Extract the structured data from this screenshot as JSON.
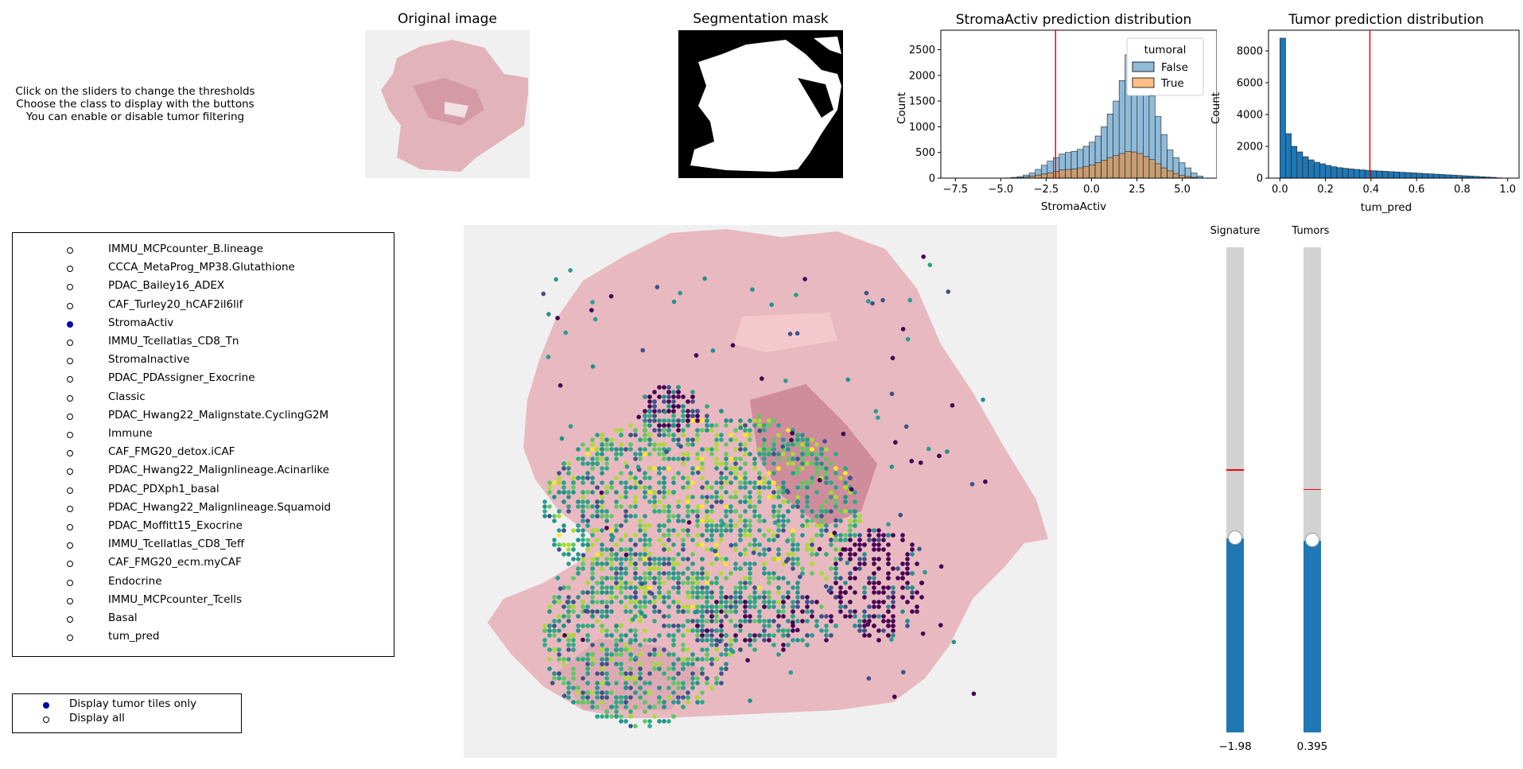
{
  "instructions": [
    "Click on the sliders to change the thresholds",
    "Choose the class to display with the buttons",
    "You can enable or disable tumor filtering"
  ],
  "original_title": "Original image",
  "mask_title": "Segmentation mask",
  "signatures": {
    "selected": "StromaActiv",
    "items": [
      "IMMU_MCPcounter_B.lineage",
      "CCCA_MetaProg_MP38.Glutathione",
      "PDAC_Bailey16_ADEX",
      "CAF_Turley20_hCAF2il6lif",
      "StromaActiv",
      "IMMU_Tcellatlas_CD8_Tn",
      "StromaInactive",
      "PDAC_PDAssigner_Exocrine",
      "Classic",
      "PDAC_Hwang22_Malignstate.CyclingG2M",
      "Immune",
      "CAF_FMG20_detox.iCAF",
      "PDAC_Hwang22_Malignlineage.Acinarlike",
      "PDAC_PDXph1_basal",
      "PDAC_Hwang22_Malignlineage.Squamoid",
      "PDAC_Moffitt15_Exocrine",
      "IMMU_Tcellatlas_CD8_Teff",
      "CAF_FMG20_ecm.myCAF",
      "Endocrine",
      "IMMU_MCPcounter_Tcells",
      "Basal",
      "tum_pred"
    ]
  },
  "filter": {
    "selected": "Display tumor tiles only",
    "options": [
      "Display tumor tiles only",
      "Display all"
    ]
  },
  "sliders": {
    "signature": {
      "label": "Signature",
      "value_text": "−1.98",
      "fill_fraction": 0.4,
      "init_fraction": 0.54
    },
    "tumors": {
      "label": "Tumors",
      "value_text": "0.395",
      "fill_fraction": 0.395,
      "init_fraction": 0.5
    }
  },
  "colors": {
    "hist_blue": "#1f77b4",
    "hist_orange": "#ff7f0e",
    "threshold": "#ff0000",
    "tissue": "#e8b9c0",
    "slide_bg": "#f0f0f0"
  },
  "chart_data": [
    {
      "type": "bar",
      "title": "StromaActiv prediction distribution",
      "xlabel": "StromaActiv",
      "ylabel": "Count",
      "xlim": [
        -8.3,
        6.9
      ],
      "ylim": [
        0,
        2880
      ],
      "xticks": [
        "−7.5",
        "−5.0",
        "−2.5",
        "0.0",
        "2.5",
        "5.0"
      ],
      "yticks": [
        "0",
        "500",
        "1000",
        "1500",
        "2000",
        "2500"
      ],
      "legend_title": "tumoral",
      "legend_position": "top-right",
      "threshold": -1.98,
      "bin_start": -4.75,
      "bin_width": 0.33,
      "series": [
        {
          "name": "False",
          "values": [
            5,
            15,
            30,
            60,
            100,
            170,
            250,
            330,
            400,
            470,
            500,
            520,
            560,
            620,
            700,
            820,
            1000,
            1250,
            1500,
            1900,
            2400,
            2700,
            2600,
            2100,
            1600,
            1200,
            850,
            550,
            400,
            300,
            200,
            100,
            40
          ]
        },
        {
          "name": "True",
          "values": [
            2,
            5,
            10,
            20,
            40,
            60,
            80,
            100,
            130,
            160,
            170,
            180,
            200,
            230,
            260,
            300,
            350,
            400,
            440,
            480,
            520,
            510,
            480,
            420,
            360,
            280,
            200,
            140,
            90,
            50,
            30,
            15,
            5
          ]
        }
      ]
    },
    {
      "type": "bar",
      "title": "Tumor prediction distribution",
      "xlabel": "tum_pred",
      "ylabel": "Count",
      "xlim": [
        -0.05,
        1.05
      ],
      "ylim": [
        0,
        9300
      ],
      "xticks": [
        "0.0",
        "0.2",
        "0.4",
        "0.6",
        "0.8",
        "1.0"
      ],
      "yticks": [
        "0",
        "2000",
        "4000",
        "6000",
        "8000"
      ],
      "threshold": 0.395,
      "bin_start": 0.0,
      "bin_width": 0.025,
      "values": [
        8800,
        2800,
        2000,
        1650,
        1350,
        1150,
        1000,
        900,
        800,
        720,
        660,
        620,
        580,
        550,
        520,
        490,
        470,
        450,
        430,
        410,
        390,
        370,
        350,
        330,
        310,
        290,
        270,
        250,
        230,
        210,
        190,
        170,
        150,
        130,
        110,
        90,
        70,
        50,
        20,
        10
      ]
    }
  ]
}
